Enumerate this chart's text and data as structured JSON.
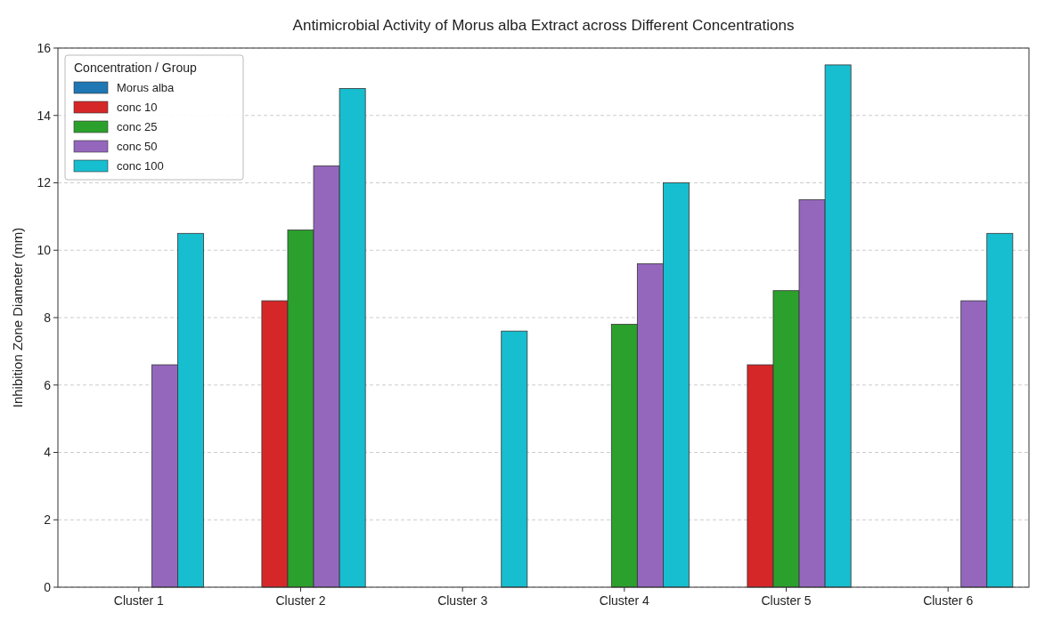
{
  "chart_data": {
    "type": "bar",
    "title": "Antimicrobial Activity of Morus alba Extract across Different Concentrations",
    "ylabel": "Inhibition Zone Diameter (mm)",
    "legend_title": "Concentration / Group",
    "categories": [
      "Cluster 1",
      "Cluster 2",
      "Cluster 3",
      "Cluster 4",
      "Cluster 5",
      "Cluster 6"
    ],
    "series": [
      {
        "name": "Morus alba",
        "color": "#1f77b4",
        "values": [
          null,
          null,
          null,
          null,
          null,
          null
        ]
      },
      {
        "name": "conc 10",
        "color": "#d62728",
        "values": [
          null,
          8.5,
          null,
          null,
          6.6,
          null
        ]
      },
      {
        "name": "conc 25",
        "color": "#2ca02c",
        "values": [
          null,
          10.6,
          null,
          7.8,
          8.8,
          null
        ]
      },
      {
        "name": "conc 50",
        "color": "#9467bd",
        "values": [
          6.6,
          12.5,
          null,
          9.6,
          11.5,
          8.5
        ]
      },
      {
        "name": "conc 100",
        "color": "#17becf",
        "values": [
          10.5,
          14.8,
          7.6,
          12.0,
          15.5,
          10.5
        ]
      }
    ],
    "ylim": [
      0,
      16
    ],
    "yticks": [
      0,
      2,
      4,
      6,
      8,
      10,
      12,
      14,
      16
    ],
    "grid": "y",
    "legend": "top left"
  }
}
